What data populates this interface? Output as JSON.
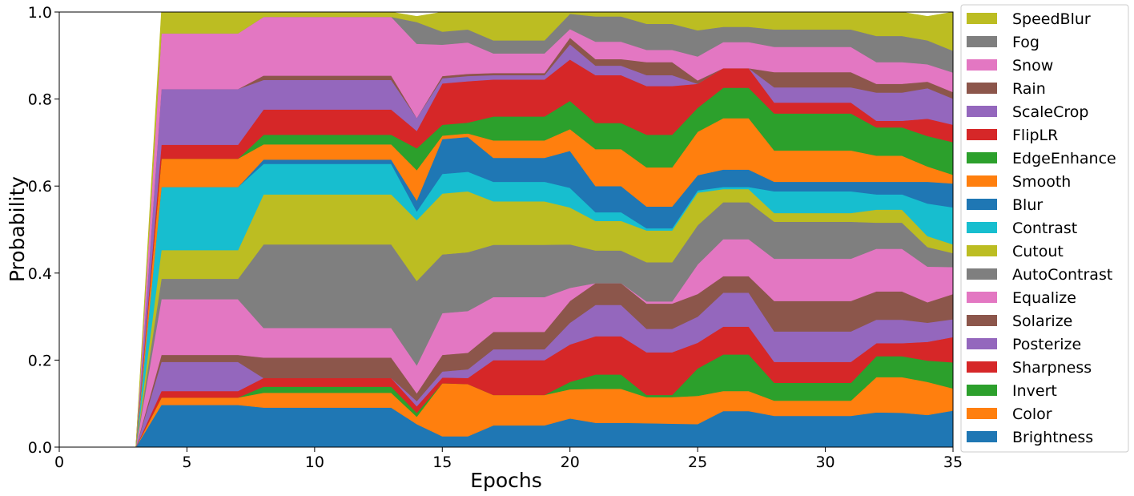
{
  "chart_data": {
    "type": "area",
    "stacked": true,
    "title": "",
    "xlabel": "Epochs",
    "ylabel": "Probability",
    "xlim": [
      0,
      35
    ],
    "ylim": [
      0,
      1
    ],
    "xticks": [
      "0",
      "5",
      "10",
      "15",
      "20",
      "25",
      "30",
      "35"
    ],
    "yticks": [
      "0.0",
      "0.2",
      "0.4",
      "0.6",
      "0.8",
      "1.0"
    ],
    "legend_position": "right",
    "grid": false,
    "x": [
      3,
      4,
      7,
      8,
      13,
      14,
      15,
      16,
      17,
      19,
      20,
      21,
      22,
      23,
      24,
      25,
      26,
      27,
      28,
      31,
      32,
      33,
      34,
      35
    ],
    "series": [
      {
        "name": "Brightness",
        "color": "#1f77b4",
        "values": [
          0,
          0.097,
          0.097,
          0.091,
          0.091,
          0.053,
          0.025,
          0.025,
          0.05,
          0.05,
          0.066,
          0.056,
          0.056,
          0.055,
          0.054,
          0.053,
          0.083,
          0.083,
          0.072,
          0.072,
          0.08,
          0.079,
          0.074,
          0.084
        ]
      },
      {
        "name": "Color",
        "color": "#ff7f0e",
        "values": [
          0,
          0.017,
          0.017,
          0.034,
          0.034,
          0.017,
          0.122,
          0.12,
          0.07,
          0.07,
          0.067,
          0.078,
          0.078,
          0.06,
          0.061,
          0.065,
          0.046,
          0.046,
          0.035,
          0.035,
          0.081,
          0.082,
          0.076,
          0.051
        ]
      },
      {
        "name": "Invert",
        "color": "#2ca02c",
        "values": [
          0,
          0,
          0,
          0.014,
          0.014,
          0.009,
          0,
          0,
          0,
          0,
          0.017,
          0.033,
          0.033,
          0.005,
          0.005,
          0.063,
          0.084,
          0.084,
          0.041,
          0.041,
          0.048,
          0.048,
          0.049,
          0.06
        ]
      },
      {
        "name": "Sharpness",
        "color": "#d62728",
        "values": [
          0,
          0.015,
          0.015,
          0.02,
          0.02,
          0.015,
          0.013,
          0.014,
          0.08,
          0.08,
          0.086,
          0.088,
          0.088,
          0.098,
          0.098,
          0.059,
          0.064,
          0.064,
          0.048,
          0.048,
          0.03,
          0.03,
          0.043,
          0.058
        ]
      },
      {
        "name": "Posterize",
        "color": "#9467bd",
        "values": [
          0,
          0.067,
          0.067,
          0,
          0,
          0.012,
          0.014,
          0.02,
          0.025,
          0.025,
          0.05,
          0.072,
          0.072,
          0.054,
          0.054,
          0.06,
          0.078,
          0.078,
          0.07,
          0.07,
          0.054,
          0.054,
          0.044,
          0.041
        ]
      },
      {
        "name": "Solarize",
        "color": "#8c564b",
        "values": [
          0,
          0.016,
          0.016,
          0.047,
          0.047,
          0.018,
          0.038,
          0.038,
          0.04,
          0.04,
          0.05,
          0.05,
          0.05,
          0.058,
          0.058,
          0.052,
          0.038,
          0.038,
          0.07,
          0.07,
          0.065,
          0.065,
          0.047,
          0.058
        ]
      },
      {
        "name": "Equalize",
        "color": "#e377c2",
        "values": [
          0,
          0.128,
          0.128,
          0.068,
          0.068,
          0.064,
          0.096,
          0.096,
          0.08,
          0.08,
          0.03,
          0,
          0,
          0.005,
          0.005,
          0.068,
          0.085,
          0.085,
          0.097,
          0.097,
          0.098,
          0.098,
          0.082,
          0.062
        ]
      },
      {
        "name": "AutoContrast",
        "color": "#7f7f7f",
        "values": [
          0,
          0.047,
          0.047,
          0.192,
          0.192,
          0.194,
          0.135,
          0.135,
          0.12,
          0.12,
          0.1,
          0.075,
          0.075,
          0.09,
          0.09,
          0.09,
          0.085,
          0.085,
          0.085,
          0.085,
          0.06,
          0.06,
          0.045,
          0.032
        ]
      },
      {
        "name": "Cutout",
        "color": "#bcbd22",
        "values": [
          0,
          0.066,
          0.066,
          0.115,
          0.115,
          0.14,
          0.14,
          0.14,
          0.1,
          0.1,
          0.085,
          0.068,
          0.068,
          0.073,
          0.073,
          0.075,
          0.03,
          0.03,
          0.02,
          0.02,
          0.03,
          0.03,
          0.025,
          0.02
        ]
      },
      {
        "name": "Contrast",
        "color": "#17becf",
        "values": [
          0,
          0.145,
          0.145,
          0.07,
          0.07,
          0.02,
          0.045,
          0.045,
          0.045,
          0.045,
          0.045,
          0.02,
          0.02,
          0.005,
          0.005,
          0.005,
          0.005,
          0.005,
          0.05,
          0.05,
          0.035,
          0.035,
          0.075,
          0.085
        ]
      },
      {
        "name": "Blur",
        "color": "#1f77b4",
        "values": [
          0,
          0,
          0,
          0.01,
          0.01,
          0.025,
          0.08,
          0.08,
          0.055,
          0.055,
          0.085,
          0.06,
          0.06,
          0.05,
          0.05,
          0.035,
          0.04,
          0.04,
          0.022,
          0.022,
          0.029,
          0.029,
          0.05,
          0.055
        ]
      },
      {
        "name": "Smooth",
        "color": "#ff7f0e",
        "values": [
          0,
          0.065,
          0.065,
          0.035,
          0.035,
          0.07,
          0.008,
          0.008,
          0.04,
          0.04,
          0.05,
          0.085,
          0.085,
          0.09,
          0.09,
          0.1,
          0.118,
          0.118,
          0.072,
          0.072,
          0.06,
          0.06,
          0.035,
          0.02
        ]
      },
      {
        "name": "EdgeEnhance",
        "color": "#2ca02c",
        "values": [
          0,
          0,
          0,
          0.022,
          0.022,
          0.05,
          0.025,
          0.025,
          0.055,
          0.055,
          0.065,
          0.06,
          0.06,
          0.075,
          0.075,
          0.055,
          0.07,
          0.07,
          0.085,
          0.085,
          0.065,
          0.065,
          0.07,
          0.075
        ]
      },
      {
        "name": "FlipLR",
        "color": "#d62728",
        "values": [
          0,
          0.032,
          0.032,
          0.058,
          0.058,
          0.04,
          0.095,
          0.095,
          0.085,
          0.085,
          0.095,
          0.11,
          0.11,
          0.112,
          0.112,
          0.055,
          0.045,
          0.045,
          0.025,
          0.025,
          0.015,
          0.015,
          0.04,
          0.04
        ]
      },
      {
        "name": "ScaleCrop",
        "color": "#9467bd",
        "values": [
          0,
          0.128,
          0.128,
          0.068,
          0.068,
          0.03,
          0.012,
          0.012,
          0.01,
          0.01,
          0.035,
          0.022,
          0.022,
          0.025,
          0.025,
          0,
          0,
          0,
          0.035,
          0.035,
          0.065,
          0.065,
          0.07,
          0.06
        ]
      },
      {
        "name": "Rain",
        "color": "#8c564b",
        "values": [
          0,
          0,
          0,
          0.01,
          0.01,
          0,
          0.005,
          0.005,
          0.005,
          0.005,
          0.015,
          0.015,
          0.015,
          0.03,
          0.03,
          0.008,
          0,
          0,
          0.035,
          0.035,
          0.02,
          0.02,
          0.015,
          0.015
        ]
      },
      {
        "name": "Snow",
        "color": "#e377c2",
        "values": [
          0,
          0.128,
          0.128,
          0.135,
          0.135,
          0.17,
          0.072,
          0.072,
          0.045,
          0.045,
          0.02,
          0.04,
          0.04,
          0.028,
          0.028,
          0.055,
          0.06,
          0.06,
          0.058,
          0.058,
          0.05,
          0.05,
          0.04,
          0.045
        ]
      },
      {
        "name": "Fog",
        "color": "#7f7f7f",
        "values": [
          0,
          0,
          0,
          0,
          0,
          0.05,
          0.03,
          0.03,
          0.03,
          0.03,
          0.035,
          0.058,
          0.058,
          0.06,
          0.06,
          0.06,
          0.035,
          0.035,
          0.04,
          0.04,
          0.06,
          0.06,
          0.055,
          0.05
        ]
      },
      {
        "name": "SpeedBlur",
        "color": "#bcbd22",
        "values": [
          0,
          0.049,
          0.049,
          0.011,
          0.011,
          0.013,
          0.045,
          0.04,
          0.065,
          0.065,
          0.024,
          0.01,
          0.01,
          0.027,
          0.027,
          0.042,
          0.034,
          0.038,
          0.04,
          0.04,
          0.055,
          0.055,
          0.055,
          0.089
        ]
      }
    ]
  }
}
